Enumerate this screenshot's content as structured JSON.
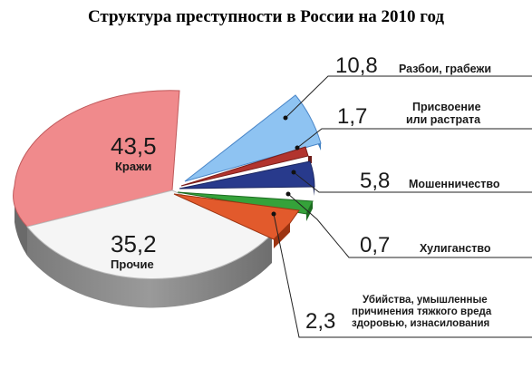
{
  "chart_data": {
    "type": "pie",
    "title": "Структура преступности в России на 2010 год",
    "unit": "%",
    "slices": [
      {
        "value": "43,5",
        "label": "Кражи",
        "color": "#f08a8c",
        "side": "#a44a4c"
      },
      {
        "value": "10,8",
        "label": "Разбои, грабежи",
        "color": "#8ec3f2",
        "side": "#3f7fc0"
      },
      {
        "value": "1,7",
        "label": "Присвоение или растрата",
        "label_lines": [
          "Присвоение",
          "или растрата"
        ],
        "color": "#b2342e",
        "side": "#6e1c18"
      },
      {
        "value": "5,8",
        "label": "Мошенничество",
        "color": "#283a8c",
        "side": "#162259"
      },
      {
        "value": "0,7",
        "label": "Хулиганство",
        "color": "#35a23a",
        "side": "#1c6a20"
      },
      {
        "value": "2,3",
        "label": "Убийства, умышленные причинения тяжкого вреда здоровью, изнасилования",
        "label_lines": [
          "Убийства, умышленные",
          "причинения тяжкого вреда",
          "здоровью, изнасилования"
        ],
        "color": "#e25a2c",
        "side": "#9c3412"
      },
      {
        "value": "35,2",
        "label": "Прочие",
        "color": "#f2f2f2",
        "side": "#8c8c8c"
      }
    ]
  }
}
